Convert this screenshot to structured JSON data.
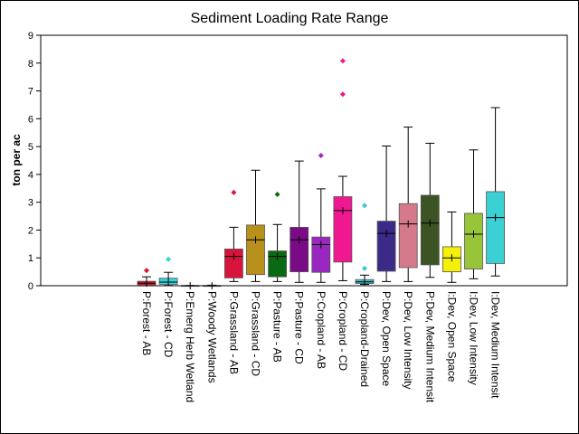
{
  "chart_data": {
    "type": "box",
    "title": "Sediment Loading Rate Range",
    "ylabel": "ton per ac",
    "xlabel": "",
    "ylim": [
      0,
      9
    ],
    "yticks": [
      0,
      1,
      2,
      3,
      4,
      5,
      6,
      7,
      8,
      9
    ],
    "grid": false,
    "legend": "none",
    "categories": [
      "P:Forest - AB",
      "P:Forest - CD",
      "P:Emerg Herb Wetland",
      "P:Woody Wetlands",
      "P:Grassland - AB",
      "P:Grassland - CD",
      "P:Pasture - AB",
      "P:Pasture - CD",
      "P:Cropland - AB",
      "P:Cropland - CD",
      "P:Cropland-Drained",
      "P:Dev, Open Space",
      "P:Dev, Low Intensity",
      "P:Dev, Medium Intensit",
      "I:Dev, Open Space",
      "I:Dev, Low Intensity",
      "I:Dev, Medium Intensit"
    ],
    "boxes": [
      {
        "whisker_low": 0.02,
        "q1": 0.02,
        "median": 0.09,
        "mean": 0.09,
        "q3": 0.16,
        "whisker_high": 0.32,
        "outliers": [
          0.55
        ],
        "color": "#e0102a"
      },
      {
        "whisker_low": 0.01,
        "q1": 0.05,
        "median": 0.13,
        "mean": 0.15,
        "q3": 0.27,
        "whisker_high": 0.48,
        "outliers": [
          0.95
        ],
        "color": "#34d4d8"
      },
      {
        "whisker_low": 0.0,
        "q1": 0.0,
        "median": 0.0,
        "mean": 0.0,
        "q3": 0.01,
        "whisker_high": 0.01,
        "outliers": [],
        "color": "#1a2a8a"
      },
      {
        "whisker_low": 0.0,
        "q1": 0.0,
        "median": 0.0,
        "mean": 0.0,
        "q3": 0.01,
        "whisker_high": 0.02,
        "outliers": [],
        "color": "#2c35a8"
      },
      {
        "whisker_low": 0.15,
        "q1": 0.28,
        "median": 1.05,
        "mean": 1.05,
        "q3": 1.32,
        "whisker_high": 2.1,
        "outliers": [
          3.35
        ],
        "color": "#d8143c"
      },
      {
        "whisker_low": 0.15,
        "q1": 0.4,
        "median": 1.65,
        "mean": 1.65,
        "q3": 2.18,
        "whisker_high": 4.15,
        "outliers": [],
        "color": "#b8901c"
      },
      {
        "whisker_low": 0.15,
        "q1": 0.32,
        "median": 1.05,
        "mean": 1.05,
        "q3": 1.25,
        "whisker_high": 2.2,
        "outliers": [
          3.28
        ],
        "color": "#0a6a14"
      },
      {
        "whisker_low": 0.12,
        "q1": 0.5,
        "median": 1.65,
        "mean": 1.65,
        "q3": 2.1,
        "whisker_high": 4.48,
        "outliers": [],
        "color": "#7a0a86"
      },
      {
        "whisker_low": 0.12,
        "q1": 0.48,
        "median": 1.48,
        "mean": 1.48,
        "q3": 1.75,
        "whisker_high": 3.48,
        "outliers": [
          4.68
        ],
        "color": "#9a28c0"
      },
      {
        "whisker_low": 0.18,
        "q1": 0.85,
        "median": 2.7,
        "mean": 2.7,
        "q3": 3.2,
        "whisker_high": 3.93,
        "outliers": [
          6.88,
          8.08
        ],
        "color": "#f01890"
      },
      {
        "whisker_low": 0.05,
        "q1": 0.08,
        "median": 0.14,
        "mean": 0.15,
        "q3": 0.22,
        "whisker_high": 0.38,
        "outliers": [
          0.62,
          2.88
        ],
        "color": "#3cc8d0"
      },
      {
        "whisker_low": 0.15,
        "q1": 0.52,
        "median": 1.88,
        "mean": 1.88,
        "q3": 2.32,
        "whisker_high": 5.02,
        "outliers": [],
        "color": "#3c2a88"
      },
      {
        "whisker_low": 0.15,
        "q1": 0.65,
        "median": 2.22,
        "mean": 2.22,
        "q3": 2.95,
        "whisker_high": 5.7,
        "outliers": [],
        "color": "#d47a8a"
      },
      {
        "whisker_low": 0.3,
        "q1": 0.75,
        "median": 2.25,
        "mean": 2.25,
        "q3": 3.25,
        "whisker_high": 5.12,
        "outliers": [],
        "color": "#3c5424"
      },
      {
        "whisker_low": 0.12,
        "q1": 0.5,
        "median": 1.0,
        "mean": 1.0,
        "q3": 1.4,
        "whisker_high": 2.65,
        "outliers": [],
        "color": "#f4f00a"
      },
      {
        "whisker_low": 0.25,
        "q1": 0.6,
        "median": 1.85,
        "mean": 1.85,
        "q3": 2.6,
        "whisker_high": 4.88,
        "outliers": [],
        "color": "#98c43a"
      },
      {
        "whisker_low": 0.35,
        "q1": 0.8,
        "median": 2.45,
        "mean": 2.45,
        "q3": 3.38,
        "whisker_high": 6.4,
        "outliers": [],
        "color": "#3ad0d4"
      }
    ]
  }
}
